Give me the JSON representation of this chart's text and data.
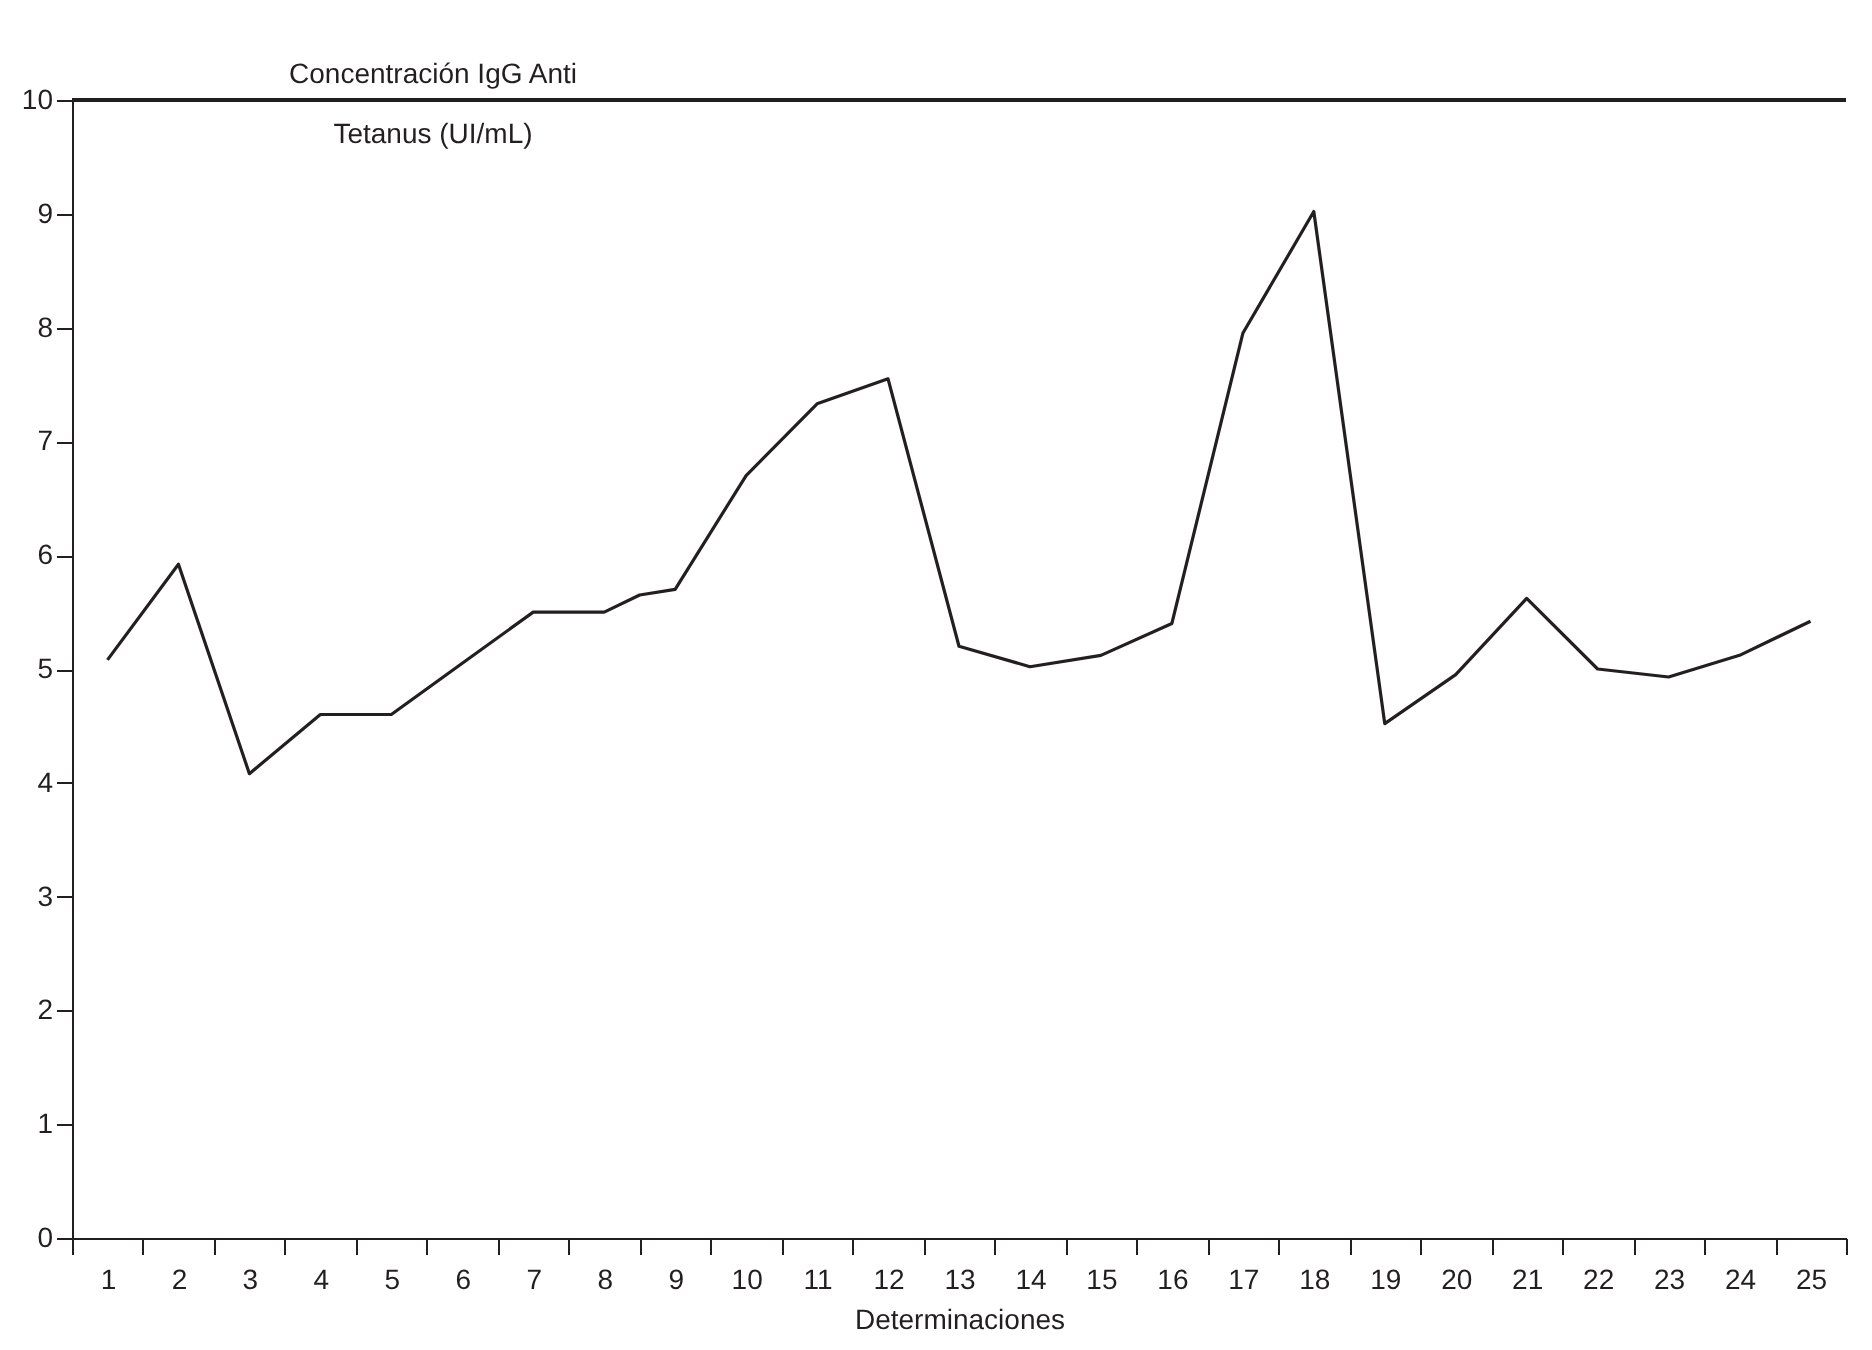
{
  "chart_data": {
    "type": "line",
    "ylabel": "Concentración IgG Anti Tetanus (UI/mL)",
    "xlabel": "Determinaciones",
    "x": [
      1,
      2,
      3,
      4,
      5,
      6,
      7,
      8,
      8.5,
      9,
      10,
      11,
      12,
      13,
      14,
      15,
      16,
      17,
      18,
      19,
      20,
      21,
      22,
      23,
      24,
      25
    ],
    "series": [
      {
        "color": "#231f20",
        "values": [
          5.08,
          5.92,
          4.08,
          4.6,
          4.6,
          5.05,
          5.5,
          5.5,
          5.65,
          5.7,
          6.7,
          7.33,
          7.55,
          5.2,
          5.02,
          5.12,
          5.4,
          7.95,
          9.02,
          4.52,
          4.95,
          5.62,
          5.0,
          4.93,
          5.12,
          5.42
        ]
      }
    ],
    "xlim": [
      0.5,
      25.5
    ],
    "xticks": [
      {
        "value": 0.5,
        "label": null
      },
      1,
      {
        "value": 1.5,
        "label": null
      },
      2,
      {
        "value": 2.5,
        "label": null
      },
      3,
      {
        "value": 3.5,
        "label": null
      },
      4,
      {
        "value": 4.5,
        "label": null
      },
      5,
      {
        "value": 5.5,
        "label": null
      },
      6,
      {
        "value": 6.5,
        "label": null
      },
      7,
      {
        "value": 7.5,
        "label": null
      },
      8,
      {
        "value": 8.5,
        "label": null
      },
      9,
      {
        "value": 9.5,
        "label": null
      },
      10,
      {
        "value": 10.5,
        "label": null
      },
      11,
      {
        "value": 11.5,
        "label": null
      },
      12,
      {
        "value": 12.5,
        "label": null
      },
      13,
      {
        "value": 13.5,
        "label": null
      },
      14,
      {
        "value": 14.5,
        "label": null
      },
      15,
      {
        "value": 15.5,
        "label": null
      },
      16,
      {
        "value": 16.5,
        "label": null
      },
      17,
      {
        "value": 17.5,
        "label": null
      },
      18,
      {
        "value": 18.5,
        "label": null
      },
      19,
      {
        "value": 19.5,
        "label": null
      },
      20,
      {
        "value": 20.5,
        "label": null
      },
      21,
      {
        "value": 21.5,
        "label": null
      },
      22,
      {
        "value": 22.5,
        "label": null
      },
      23,
      {
        "value": 23.5,
        "label": null
      },
      24,
      {
        "value": 24.5,
        "label": null
      },
      25,
      {
        "value": 25.5,
        "label": null
      }
    ],
    "ylim": [
      0,
      10
    ],
    "yticks": [
      0,
      1,
      2,
      3,
      4,
      5,
      6,
      7,
      8,
      9,
      10
    ],
    "grid": false,
    "legend": false,
    "marker": "none",
    "line_style": "solid"
  }
}
